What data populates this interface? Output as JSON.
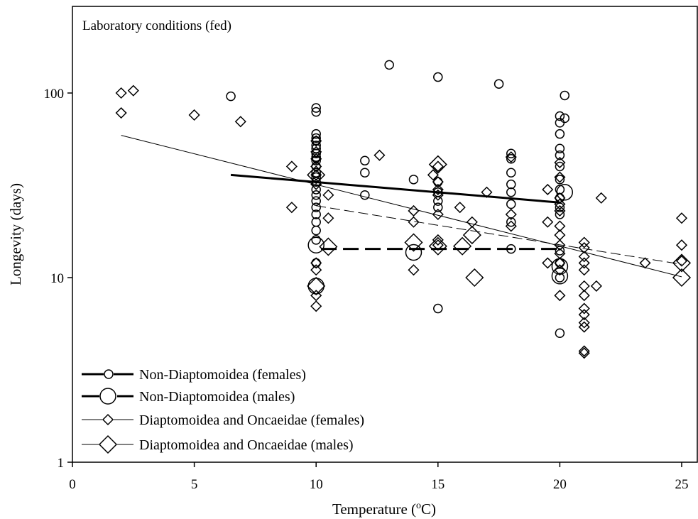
{
  "chart_data": {
    "type": "scatter",
    "annotation": "Laboratory conditions (fed)",
    "xlabel": "Temperature (",
    "xlabel_sup": "o",
    "xlabel_unit": "C)",
    "ylabel": "Longevity (days)",
    "xlim": [
      0,
      26
    ],
    "ylim": [
      1,
      300
    ],
    "yscale": "log",
    "grid": false,
    "legend_position": "bottom-left",
    "x_ticks": [
      0,
      5,
      10,
      15,
      20,
      25
    ],
    "y_ticks": [
      1,
      10,
      100
    ],
    "series": [
      {
        "name": "Non-Diaptomoidea (females)",
        "marker": "circle-small",
        "line": "thick-solid",
        "points": [
          [
            6.5,
            96
          ],
          [
            10,
            83
          ],
          [
            10,
            79
          ],
          [
            10,
            60
          ],
          [
            10,
            57
          ],
          [
            10,
            55
          ],
          [
            10,
            52
          ],
          [
            10,
            50
          ],
          [
            10,
            47
          ],
          [
            10,
            45
          ],
          [
            10,
            43
          ],
          [
            10,
            40
          ],
          [
            10,
            37
          ],
          [
            10,
            35
          ],
          [
            10,
            33
          ],
          [
            10,
            30
          ],
          [
            10,
            28
          ],
          [
            10,
            26
          ],
          [
            10,
            24
          ],
          [
            10,
            22
          ],
          [
            10,
            20
          ],
          [
            10,
            18
          ],
          [
            10,
            16
          ],
          [
            10,
            12
          ],
          [
            12,
            43
          ],
          [
            12,
            37
          ],
          [
            12,
            28
          ],
          [
            13,
            142
          ],
          [
            14,
            34
          ],
          [
            15,
            122
          ],
          [
            15,
            33
          ],
          [
            15,
            29
          ],
          [
            15,
            26
          ],
          [
            15,
            24
          ],
          [
            15,
            6.8
          ],
          [
            17.5,
            112
          ],
          [
            18,
            47
          ],
          [
            18,
            44
          ],
          [
            18,
            37
          ],
          [
            18,
            32
          ],
          [
            18,
            29
          ],
          [
            18,
            25
          ],
          [
            18,
            20
          ],
          [
            18,
            14.3
          ],
          [
            20,
            75
          ],
          [
            20,
            69
          ],
          [
            20,
            60
          ],
          [
            20,
            50
          ],
          [
            20,
            46
          ],
          [
            20,
            40
          ],
          [
            20,
            34
          ],
          [
            20,
            30
          ],
          [
            20,
            27
          ],
          [
            20,
            24
          ],
          [
            20,
            22
          ],
          [
            20,
            14
          ],
          [
            20,
            12
          ],
          [
            20,
            10
          ],
          [
            20,
            5
          ],
          [
            20.2,
            97
          ],
          [
            20.2,
            73
          ]
        ],
        "trend": [
          [
            6.5,
            36
          ],
          [
            20,
            25.5
          ]
        ]
      },
      {
        "name": "Non-Diaptomoidea (males)",
        "marker": "circle-large",
        "line": "thick-dashed",
        "points": [
          [
            10,
            15
          ],
          [
            10,
            9
          ],
          [
            14,
            13.7
          ],
          [
            20.2,
            29
          ],
          [
            20,
            11.5
          ],
          [
            20,
            10.2
          ]
        ],
        "trend": [
          [
            10.2,
            14.3
          ],
          [
            20,
            14.3
          ]
        ]
      },
      {
        "name": "Diaptomoidea and Oncaeidae (females)",
        "marker": "diamond-small",
        "line": "thin-solid",
        "points": [
          [
            2,
            100
          ],
          [
            2,
            78
          ],
          [
            2.5,
            103
          ],
          [
            5,
            76
          ],
          [
            6.9,
            70
          ],
          [
            9,
            40
          ],
          [
            9,
            24
          ],
          [
            10,
            55
          ],
          [
            10,
            48
          ],
          [
            10,
            44
          ],
          [
            10,
            40
          ],
          [
            10,
            36
          ],
          [
            10,
            32
          ],
          [
            10,
            12
          ],
          [
            10,
            11
          ],
          [
            10,
            8
          ],
          [
            10,
            7
          ],
          [
            10.5,
            28
          ],
          [
            10.5,
            21
          ],
          [
            12.6,
            46
          ],
          [
            14,
            23
          ],
          [
            14,
            20
          ],
          [
            14,
            11
          ],
          [
            14.8,
            36
          ],
          [
            15,
            40
          ],
          [
            15,
            33
          ],
          [
            15,
            30
          ],
          [
            15,
            28
          ],
          [
            15,
            22
          ],
          [
            15,
            16
          ],
          [
            15,
            15
          ],
          [
            15.9,
            24
          ],
          [
            16.4,
            20
          ],
          [
            17,
            29
          ],
          [
            18,
            45
          ],
          [
            18,
            22
          ],
          [
            18,
            19
          ],
          [
            19.5,
            30
          ],
          [
            19.5,
            20
          ],
          [
            19.5,
            12
          ],
          [
            20,
            42
          ],
          [
            20,
            35
          ],
          [
            20,
            27
          ],
          [
            20,
            25
          ],
          [
            20,
            23
          ],
          [
            20,
            19
          ],
          [
            20,
            17
          ],
          [
            20,
            15
          ],
          [
            20,
            13.5
          ],
          [
            20,
            12
          ],
          [
            20,
            11
          ],
          [
            20,
            8
          ],
          [
            21,
            15.5
          ],
          [
            21,
            14.5
          ],
          [
            21,
            13
          ],
          [
            21,
            12
          ],
          [
            21,
            11
          ],
          [
            21,
            9
          ],
          [
            21,
            8
          ],
          [
            21,
            6.8
          ],
          [
            21,
            6.3
          ],
          [
            21,
            5.7
          ],
          [
            21,
            5.4
          ],
          [
            21,
            4.0
          ],
          [
            21,
            3.9
          ],
          [
            21.5,
            9
          ],
          [
            21.7,
            27
          ],
          [
            23.5,
            12
          ],
          [
            25,
            21
          ],
          [
            25,
            15
          ],
          [
            25,
            12.3
          ]
        ],
        "trend": [
          [
            2,
            59
          ],
          [
            25,
            10.1
          ]
        ]
      },
      {
        "name": "Diaptomoidea and Oncaeidae (males)",
        "marker": "diamond-large",
        "line": "thin-dashed",
        "points": [
          [
            10,
            36
          ],
          [
            10,
            9
          ],
          [
            10.5,
            14.7
          ],
          [
            14,
            15.5
          ],
          [
            15,
            41
          ],
          [
            15,
            14.8
          ],
          [
            16,
            14.8
          ],
          [
            16.4,
            17
          ],
          [
            16.5,
            10
          ],
          [
            25,
            12
          ],
          [
            25,
            10
          ]
        ],
        "trend": [
          [
            10,
            24.5
          ],
          [
            25,
            11.8
          ]
        ]
      }
    ]
  }
}
